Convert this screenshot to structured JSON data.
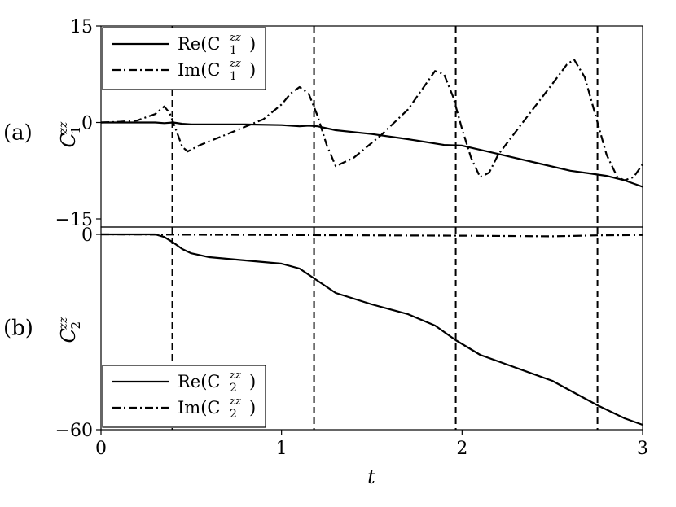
{
  "chart_data": {
    "type": "line",
    "xlabel": "t",
    "xlim": [
      0,
      3
    ],
    "xticks": [
      "0",
      "1",
      "2",
      "3"
    ],
    "vlines": [
      0.395,
      1.18,
      1.965,
      2.75
    ],
    "panels": [
      {
        "label": "(a)",
        "ylabel_base": "C",
        "ylabel_sup": "zz",
        "ylabel_sub": "1",
        "ylim": [
          -15,
          15
        ],
        "yticks": [
          "15",
          "0",
          "−15"
        ],
        "ytick_values": [
          15,
          0,
          -15
        ],
        "legend": [
          {
            "text": "Re(C",
            "sup": "zz",
            "sub": "1",
            "close": ")",
            "style": "solid"
          },
          {
            "text": "Im(C",
            "sup": "zz",
            "sub": "1",
            "close": ")",
            "style": "dashdot"
          }
        ],
        "series": [
          {
            "name": "Re(C1zz)",
            "style": "solid",
            "x": [
              0,
              0.2,
              0.3,
              0.35,
              0.4,
              0.45,
              0.5,
              0.6,
              0.8,
              1.0,
              1.1,
              1.15,
              1.2,
              1.3,
              1.5,
              1.7,
              1.9,
              2.0,
              2.2,
              2.4,
              2.6,
              2.7,
              2.8,
              2.9,
              3.0
            ],
            "y": [
              0,
              0,
              0,
              -0.1,
              0,
              -0.2,
              -0.3,
              -0.3,
              -0.3,
              -0.4,
              -0.6,
              -0.5,
              -0.6,
              -1.2,
              -1.8,
              -2.6,
              -3.5,
              -3.6,
              -4.9,
              -6.2,
              -7.5,
              -7.9,
              -8.3,
              -9.0,
              -10.0
            ]
          },
          {
            "name": "Im(C1zz)",
            "style": "dashdot",
            "x": [
              0,
              0.1,
              0.2,
              0.3,
              0.35,
              0.38,
              0.42,
              0.45,
              0.48,
              0.55,
              0.7,
              0.9,
              1.0,
              1.05,
              1.1,
              1.15,
              1.2,
              1.25,
              1.3,
              1.4,
              1.55,
              1.7,
              1.8,
              1.85,
              1.9,
              1.95,
              2.0,
              2.05,
              2.1,
              2.15,
              2.2,
              2.35,
              2.5,
              2.58,
              2.62,
              2.68,
              2.74,
              2.8,
              2.86,
              2.9,
              2.95,
              3.0
            ],
            "y": [
              0,
              0.1,
              0.3,
              1.3,
              2.5,
              1.5,
              -1.5,
              -3.8,
              -4.5,
              -3.5,
              -1.8,
              0.5,
              2.8,
              4.5,
              5.5,
              4.5,
              1.0,
              -3.5,
              -6.8,
              -5.5,
              -2.0,
              2.0,
              6.0,
              8.0,
              7.5,
              4.0,
              -1.0,
              -5.5,
              -8.5,
              -7.8,
              -5.0,
              0.5,
              6.0,
              9.0,
              9.8,
              7.0,
              1.0,
              -5.0,
              -8.5,
              -9.0,
              -8.5,
              -6.5
            ]
          }
        ]
      },
      {
        "label": "(b)",
        "ylabel_base": "C",
        "ylabel_sup": "zz",
        "ylabel_sub": "2",
        "ylim": [
          -60,
          2
        ],
        "yticks": [
          "0",
          "−60"
        ],
        "ytick_values": [
          0,
          -60
        ],
        "legend": [
          {
            "text": "Re(C",
            "sup": "zz",
            "sub": "2",
            "close": ")",
            "style": "solid"
          },
          {
            "text": "Im(C",
            "sup": "zz",
            "sub": "2",
            "close": ")",
            "style": "dashdot"
          }
        ],
        "series": [
          {
            "name": "Re(C2zz)",
            "style": "solid",
            "x": [
              0,
              0.3,
              0.35,
              0.4,
              0.45,
              0.5,
              0.6,
              0.8,
              1.0,
              1.1,
              1.18,
              1.3,
              1.5,
              1.7,
              1.85,
              1.965,
              2.1,
              2.3,
              2.5,
              2.6,
              2.75,
              2.9,
              3.0
            ],
            "y": [
              0,
              0,
              -0.8,
              -2.5,
              -4.5,
              -5.8,
              -7,
              -8,
              -9,
              -10.5,
              -13.5,
              -18,
              -21.5,
              -24.5,
              -28,
              -32.5,
              -37,
              -41,
              -45,
              -48,
              -52.5,
              -56.5,
              -58.5
            ]
          },
          {
            "name": "Im(C2zz)",
            "style": "dashdot",
            "x": [
              0,
              0.5,
              1.0,
              1.5,
              2.0,
              2.5,
              2.75,
              3.0
            ],
            "y": [
              0,
              -0.1,
              -0.2,
              -0.3,
              -0.4,
              -0.6,
              -0.3,
              -0.2
            ]
          }
        ]
      }
    ]
  }
}
